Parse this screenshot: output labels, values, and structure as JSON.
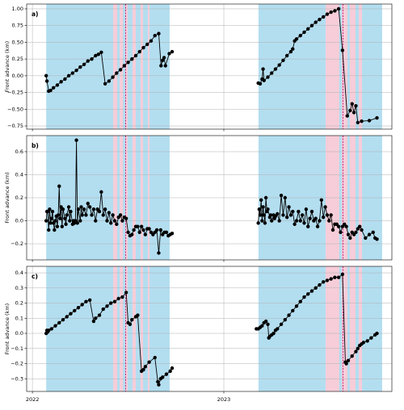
{
  "chart_data": [
    {
      "type": "line",
      "panel_label": "a)",
      "ylabel": "Front advance (km)",
      "xlim": [
        2021.97,
        2023.878
      ],
      "xticks": [
        2022,
        2023
      ],
      "ylim": [
        -0.798,
        1.072
      ],
      "yticks": [
        {
          "value": -0.75,
          "label": "−0.75"
        },
        {
          "value": -0.5,
          "label": "−0.50"
        },
        {
          "value": -0.25,
          "label": "−0.25"
        },
        {
          "value": 0,
          "label": "0.00"
        },
        {
          "value": 0.25,
          "label": "0.25"
        },
        {
          "value": 0.5,
          "label": "0.50"
        },
        {
          "value": 0.75,
          "label": "0.75"
        },
        {
          "value": 1,
          "label": "1.00"
        }
      ],
      "grid": true,
      "bands": [
        {
          "x": [
            2022.072,
            2022.717
          ],
          "color": "#b3def0"
        },
        {
          "x": [
            2023.181,
            2023.827
          ],
          "color": "#b3def0"
        },
        {
          "x": [
            2022.422,
            2022.443
          ],
          "color": "#f6cdd9"
        },
        {
          "x": [
            2022.456,
            2022.473
          ],
          "color": "#f6cdd9"
        },
        {
          "x": [
            2022.485,
            2022.498
          ],
          "color": "#f6cdd9"
        },
        {
          "x": [
            2022.523,
            2022.54
          ],
          "color": "#f6cdd9"
        },
        {
          "x": [
            2022.565,
            2022.578
          ],
          "color": "#f6cdd9"
        },
        {
          "x": [
            2022.603,
            2022.612
          ],
          "color": "#f6cdd9"
        },
        {
          "x": [
            2023.532,
            2023.603
          ],
          "color": "#f6cdd9"
        },
        {
          "x": [
            2023.616,
            2023.646
          ],
          "color": "#f6cdd9"
        },
        {
          "x": [
            2023.658,
            2023.688
          ],
          "color": "#f6cdd9"
        },
        {
          "x": [
            2023.705,
            2023.722
          ],
          "color": "#f6cdd9"
        }
      ],
      "vlines": {
        "x": [
          2022.487,
          2023.622
        ],
        "color": "#b0006a"
      },
      "x": [
        2022.072,
        2022.076,
        2022.085,
        2022.095,
        2022.11,
        2022.13,
        2022.15,
        2022.17,
        2022.19,
        2022.21,
        2022.23,
        2022.25,
        2022.27,
        2022.29,
        2022.31,
        2022.33,
        2022.345,
        2022.36,
        2022.38,
        2022.4,
        2022.42,
        2022.44,
        2022.46,
        2022.48,
        2022.5,
        2022.52,
        2022.54,
        2022.56,
        2022.58,
        2022.6,
        2022.62,
        2022.64,
        2022.66,
        2022.672,
        2022.68,
        2022.688,
        2022.695,
        2022.715,
        2022.73,
        2022.95,
        2023.18,
        2023.19,
        2023.2,
        2023.205,
        2023.21,
        2023.23,
        2023.25,
        2023.27,
        2023.29,
        2023.31,
        2023.33,
        2023.35,
        2023.36,
        2023.37,
        2023.38,
        2023.4,
        2023.42,
        2023.44,
        2023.46,
        2023.48,
        2023.5,
        2023.52,
        2023.54,
        2023.56,
        2023.58,
        2023.6,
        2023.62,
        2023.645,
        2023.66,
        2023.67,
        2023.68,
        2023.69,
        2023.7,
        2023.72,
        2023.76,
        2023.8
      ],
      "series": [
        {
          "color": "#000000",
          "values": [
            0.0,
            -0.08,
            -0.23,
            -0.22,
            -0.18,
            -0.14,
            -0.09,
            -0.05,
            0.0,
            0.04,
            0.08,
            0.13,
            0.17,
            0.22,
            0.25,
            0.3,
            0.32,
            0.35,
            -0.12,
            -0.08,
            -0.02,
            0.04,
            0.09,
            0.15,
            0.2,
            0.25,
            0.3,
            0.36,
            0.42,
            0.47,
            0.52,
            0.6,
            0.63,
            0.15,
            0.23,
            0.27,
            0.15,
            0.33,
            0.36,
            null,
            -0.11,
            -0.12,
            -0.05,
            0.1,
            -0.07,
            -0.02,
            0.04,
            0.1,
            0.16,
            0.23,
            0.3,
            0.36,
            0.4,
            0.52,
            0.55,
            0.6,
            0.65,
            0.7,
            0.75,
            0.8,
            0.84,
            0.88,
            0.92,
            0.95,
            0.97,
            1.0,
            0.38,
            -0.6,
            -0.52,
            -0.42,
            -0.55,
            -0.45,
            -0.7,
            -0.68,
            -0.67,
            -0.63
          ]
        }
      ]
    },
    {
      "type": "line",
      "panel_label": "b)",
      "ylabel": "Front advance (km)",
      "xlim": [
        2021.97,
        2023.878
      ],
      "xticks": [
        2022,
        2023
      ],
      "ylim": [
        -0.34,
        0.74
      ],
      "yticks": [
        {
          "value": -0.2,
          "label": "−0.2"
        },
        {
          "value": 0,
          "label": "0.0"
        },
        {
          "value": 0.2,
          "label": "0.2"
        },
        {
          "value": 0.4,
          "label": "0.4"
        },
        {
          "value": 0.6,
          "label": "0.6"
        }
      ],
      "grid": true,
      "bands": [
        {
          "x": [
            2022.072,
            2022.717
          ],
          "color": "#b3def0"
        },
        {
          "x": [
            2023.181,
            2023.827
          ],
          "color": "#b3def0"
        },
        {
          "x": [
            2022.422,
            2022.443
          ],
          "color": "#f6cdd9"
        },
        {
          "x": [
            2022.456,
            2022.473
          ],
          "color": "#f6cdd9"
        },
        {
          "x": [
            2022.485,
            2022.498
          ],
          "color": "#f6cdd9"
        },
        {
          "x": [
            2022.523,
            2022.54
          ],
          "color": "#f6cdd9"
        },
        {
          "x": [
            2022.565,
            2022.578
          ],
          "color": "#f6cdd9"
        },
        {
          "x": [
            2022.603,
            2022.612
          ],
          "color": "#f6cdd9"
        },
        {
          "x": [
            2023.532,
            2023.603
          ],
          "color": "#f6cdd9"
        },
        {
          "x": [
            2023.616,
            2023.646
          ],
          "color": "#f6cdd9"
        },
        {
          "x": [
            2023.658,
            2023.688
          ],
          "color": "#f6cdd9"
        },
        {
          "x": [
            2023.705,
            2023.722
          ],
          "color": "#f6cdd9"
        }
      ],
      "vlines": {
        "x": [
          2022.487,
          2023.622
        ],
        "color": "#b0006a"
      },
      "x": [
        2022.072,
        2022.076,
        2022.08,
        2022.085,
        2022.09,
        2022.095,
        2022.1,
        2022.105,
        2022.11,
        2022.115,
        2022.12,
        2022.125,
        2022.13,
        2022.135,
        2022.14,
        2022.145,
        2022.15,
        2022.155,
        2022.16,
        2022.17,
        2022.175,
        2022.18,
        2022.19,
        2022.195,
        2022.2,
        2022.21,
        2022.215,
        2022.22,
        2022.225,
        2022.23,
        2022.235,
        2022.24,
        2022.25,
        2022.255,
        2022.26,
        2022.27,
        2022.28,
        2022.29,
        2022.3,
        2022.31,
        2022.32,
        2022.33,
        2022.34,
        2022.35,
        2022.36,
        2022.37,
        2022.38,
        2022.39,
        2022.4,
        2022.41,
        2022.42,
        2022.43,
        2022.44,
        2022.45,
        2022.46,
        2022.47,
        2022.48,
        2022.49,
        2022.5,
        2022.51,
        2022.52,
        2022.53,
        2022.54,
        2022.55,
        2022.56,
        2022.57,
        2022.58,
        2022.59,
        2022.6,
        2022.61,
        2022.62,
        2022.63,
        2022.64,
        2022.65,
        2022.66,
        2022.67,
        2022.68,
        2022.69,
        2022.7,
        2022.71,
        2022.72,
        2022.73,
        2022.95,
        2023.18,
        2023.185,
        2023.19,
        2023.195,
        2023.2,
        2023.205,
        2023.21,
        2023.215,
        2023.22,
        2023.225,
        2023.23,
        2023.24,
        2023.245,
        2023.25,
        2023.26,
        2023.265,
        2023.27,
        2023.28,
        2023.29,
        2023.3,
        2023.31,
        2023.32,
        2023.33,
        2023.34,
        2023.35,
        2023.36,
        2023.37,
        2023.38,
        2023.39,
        2023.4,
        2023.41,
        2023.42,
        2023.43,
        2023.44,
        2023.45,
        2023.46,
        2023.47,
        2023.48,
        2023.49,
        2023.5,
        2023.51,
        2023.52,
        2023.53,
        2023.54,
        2023.55,
        2023.56,
        2023.57,
        2023.58,
        2023.59,
        2023.6,
        2023.61,
        2023.62,
        2023.63,
        2023.64,
        2023.65,
        2023.66,
        2023.67,
        2023.68,
        2023.69,
        2023.7,
        2023.71,
        2023.72,
        2023.74,
        2023.76,
        2023.78,
        2023.79,
        2023.8
      ],
      "series": [
        {
          "color": "#000000",
          "values": [
            0.0,
            0.08,
            0.08,
            -0.08,
            0.1,
            -0.02,
            0.02,
            0.08,
            -0.02,
            -0.08,
            0.0,
            0.04,
            -0.05,
            0.05,
            0.3,
            0.02,
            0.12,
            -0.05,
            0.1,
            0.02,
            -0.03,
            0.05,
            0.12,
            0.0,
            0.08,
            -0.03,
            0.0,
            -0.02,
            0.0,
            0.7,
            -0.02,
            0.1,
            0.0,
            0.12,
            0.05,
            0.1,
            0.05,
            0.15,
            0.12,
            0.05,
            0.1,
            0.0,
            0.1,
            0.08,
            0.25,
            0.05,
            0.1,
            0.0,
            0.07,
            -0.02,
            0.05,
            0.0,
            -0.03,
            0.03,
            0.05,
            0.0,
            0.03,
            0.02,
            -0.1,
            -0.13,
            -0.12,
            -0.08,
            -0.05,
            -0.05,
            -0.1,
            -0.05,
            -0.08,
            -0.12,
            -0.07,
            -0.07,
            -0.1,
            -0.12,
            -0.1,
            -0.08,
            -0.28,
            -0.08,
            -0.12,
            -0.1,
            -0.1,
            -0.13,
            -0.12,
            -0.11,
            null,
            -0.02,
            0.1,
            0.05,
            0.18,
            0.0,
            0.12,
            0.05,
            -0.02,
            0.2,
            0.08,
            0.1,
            0.03,
            0.05,
            0.0,
            0.05,
            0.02,
            0.04,
            0.06,
            0.0,
            0.22,
            0.05,
            0.2,
            0.03,
            0.12,
            0.05,
            0.08,
            -0.03,
            0.0,
            0.08,
            0.0,
            0.05,
            -0.02,
            0.1,
            -0.05,
            0.02,
            0.08,
            0.0,
            0.02,
            -0.05,
            0.0,
            0.18,
            0.03,
            0.12,
            0.05,
            0.0,
            0.05,
            -0.08,
            -0.03,
            -0.03,
            -0.05,
            -0.1,
            -0.05,
            -0.03,
            -0.05,
            -0.12,
            -0.15,
            -0.1,
            -0.12,
            -0.1,
            -0.07,
            -0.05,
            -0.08,
            -0.15,
            -0.12,
            -0.1,
            -0.15,
            -0.16
          ]
        }
      ]
    },
    {
      "type": "line",
      "panel_label": "c)",
      "ylabel": "Front advance (km)",
      "xlim": [
        2021.97,
        2023.878
      ],
      "xticks": [
        2022,
        2023
      ],
      "ylim": [
        -0.384,
        0.443
      ],
      "yticks": [
        {
          "value": -0.3,
          "label": "−0.3"
        },
        {
          "value": -0.2,
          "label": "−0.2"
        },
        {
          "value": -0.1,
          "label": "−0.1"
        },
        {
          "value": 0,
          "label": "0.0"
        },
        {
          "value": 0.1,
          "label": "0.1"
        },
        {
          "value": 0.2,
          "label": "0.2"
        },
        {
          "value": 0.3,
          "label": "0.3"
        },
        {
          "value": 0.4,
          "label": "0.4"
        }
      ],
      "grid": true,
      "bands": [
        {
          "x": [
            2022.072,
            2022.717
          ],
          "color": "#b3def0"
        },
        {
          "x": [
            2023.181,
            2023.827
          ],
          "color": "#b3def0"
        },
        {
          "x": [
            2022.422,
            2022.443
          ],
          "color": "#f6cdd9"
        },
        {
          "x": [
            2022.456,
            2022.473
          ],
          "color": "#f6cdd9"
        },
        {
          "x": [
            2022.485,
            2022.498
          ],
          "color": "#f6cdd9"
        },
        {
          "x": [
            2022.523,
            2022.54
          ],
          "color": "#f6cdd9"
        },
        {
          "x": [
            2022.565,
            2022.578
          ],
          "color": "#f6cdd9"
        },
        {
          "x": [
            2022.603,
            2022.612
          ],
          "color": "#f6cdd9"
        },
        {
          "x": [
            2023.532,
            2023.603
          ],
          "color": "#f6cdd9"
        },
        {
          "x": [
            2023.616,
            2023.646
          ],
          "color": "#f6cdd9"
        },
        {
          "x": [
            2023.658,
            2023.688
          ],
          "color": "#f6cdd9"
        },
        {
          "x": [
            2023.705,
            2023.722
          ],
          "color": "#f6cdd9"
        }
      ],
      "vlines": {
        "x": [
          2022.487,
          2023.622
        ],
        "color": "#b0006a"
      },
      "x": [
        2022.072,
        2022.076,
        2022.08,
        2022.085,
        2022.1,
        2022.12,
        2022.14,
        2022.16,
        2022.18,
        2022.2,
        2022.22,
        2022.24,
        2022.26,
        2022.28,
        2022.3,
        2022.32,
        2022.33,
        2022.35,
        2022.37,
        2022.39,
        2022.41,
        2022.43,
        2022.45,
        2022.47,
        2022.49,
        2022.5,
        2022.51,
        2022.52,
        2022.54,
        2022.55,
        2022.57,
        2022.58,
        2022.59,
        2022.61,
        2022.64,
        2022.655,
        2022.66,
        2022.67,
        2022.68,
        2022.7,
        2022.72,
        2022.73,
        2022.95,
        2023.17,
        2023.18,
        2023.19,
        2023.2,
        2023.21,
        2023.22,
        2023.23,
        2023.235,
        2023.24,
        2023.25,
        2023.26,
        2023.27,
        2023.28,
        2023.3,
        2023.32,
        2023.34,
        2023.36,
        2023.38,
        2023.4,
        2023.42,
        2023.44,
        2023.46,
        2023.48,
        2023.5,
        2023.52,
        2023.54,
        2023.56,
        2023.58,
        2023.6,
        2023.62,
        2023.635,
        2023.64,
        2023.65,
        2023.67,
        2023.69,
        2023.7,
        2023.71,
        2023.72,
        2023.73,
        2023.75,
        2023.77,
        2023.79,
        2023.8
      ],
      "series": [
        {
          "color": "#000000",
          "values": [
            0.0,
            0.02,
            0.01,
            0.02,
            0.03,
            0.05,
            0.07,
            0.09,
            0.11,
            0.13,
            0.15,
            0.17,
            0.19,
            0.21,
            0.22,
            0.08,
            0.1,
            0.12,
            0.16,
            0.18,
            0.2,
            0.21,
            0.23,
            0.24,
            0.27,
            0.07,
            0.06,
            0.09,
            0.11,
            0.12,
            -0.25,
            -0.24,
            -0.22,
            -0.19,
            -0.16,
            -0.32,
            -0.34,
            -0.3,
            -0.29,
            -0.27,
            -0.25,
            -0.23,
            null,
            0.03,
            0.03,
            0.04,
            0.05,
            0.07,
            0.08,
            0.06,
            -0.03,
            -0.02,
            -0.01,
            0.0,
            0.02,
            0.03,
            0.06,
            0.09,
            0.12,
            0.15,
            0.18,
            0.21,
            0.24,
            0.26,
            0.28,
            0.3,
            0.32,
            0.34,
            0.35,
            0.36,
            0.37,
            0.37,
            0.39,
            -0.19,
            -0.2,
            -0.18,
            -0.15,
            -0.12,
            -0.1,
            -0.08,
            -0.07,
            -0.06,
            -0.05,
            -0.03,
            -0.01,
            0.0
          ]
        }
      ]
    }
  ]
}
